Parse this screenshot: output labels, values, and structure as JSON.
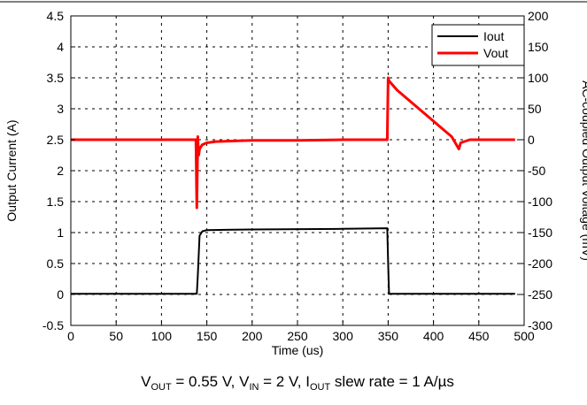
{
  "chart_data": {
    "type": "line",
    "title": "",
    "xlabel": "Time (us)",
    "ylabel": "Output Current (A)",
    "y2label": "AC-coupled Output Voltage (mV)",
    "xlim": [
      0,
      500
    ],
    "ylim": [
      -0.5,
      4.5
    ],
    "y2lim": [
      -300,
      200
    ],
    "x_ticks": [
      0,
      50,
      100,
      150,
      200,
      250,
      300,
      350,
      400,
      450,
      500
    ],
    "y_ticks": [
      -0.5,
      0,
      0.5,
      1,
      1.5,
      2,
      2.5,
      3,
      3.5,
      4,
      4.5
    ],
    "y_tick_labels": [
      "-0.5",
      "0",
      "0.5",
      "1",
      "1.5",
      "2",
      "2.5",
      "3",
      "3.5",
      "4",
      "4.5"
    ],
    "y2_ticks": [
      -300,
      -250,
      -200,
      -150,
      -100,
      -50,
      0,
      50,
      100,
      150,
      200
    ],
    "grid": true,
    "legend_position": "top-right",
    "series": [
      {
        "name": "Iout",
        "axis": "left",
        "color": "#000000",
        "x": [
          0,
          139,
          140,
          142,
          145,
          150,
          200,
          300,
          349,
          350,
          351,
          490
        ],
        "y": [
          0.01,
          0.01,
          0.3,
          0.95,
          1.02,
          1.04,
          1.05,
          1.06,
          1.07,
          0.5,
          0.01,
          0.01
        ]
      },
      {
        "name": "Vout",
        "axis": "right",
        "color": "#ff0000",
        "x": [
          0,
          138,
          139,
          140,
          141,
          142,
          145,
          150,
          160,
          180,
          200,
          250,
          300,
          349,
          350,
          351,
          360,
          380,
          400,
          420,
          428,
          430,
          440,
          490
        ],
        "y": [
          0,
          0,
          -110,
          5,
          -25,
          -15,
          -8,
          -5,
          -3,
          -2,
          -1,
          -1,
          0,
          0,
          100,
          95,
          80,
          55,
          30,
          5,
          -15,
          -5,
          0,
          0
        ]
      }
    ],
    "caption": {
      "v_main": "V",
      "v_sub": "OUT",
      "v_val": " = 0.55 V, ",
      "vin_main": "V",
      "vin_sub": "IN",
      "vin_val": " = 2 V, ",
      "i_main": "I",
      "i_sub": "OUT",
      "i_val": " slew rate = 1 A/µs"
    }
  }
}
